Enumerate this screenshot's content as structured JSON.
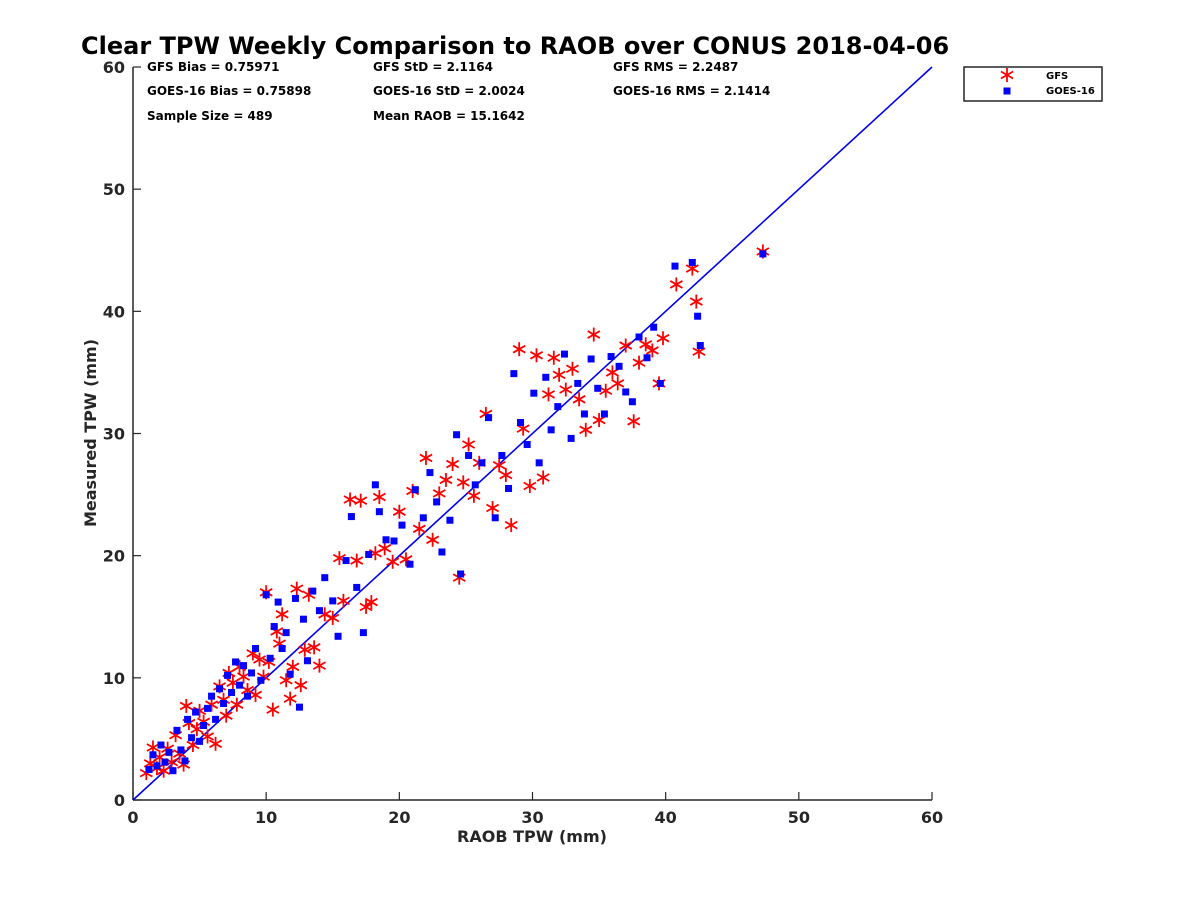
{
  "chart_data": {
    "type": "scatter",
    "title": "Clear TPW Weekly Comparison to RAOB over CONUS 2018-04-06",
    "xlabel": "RAOB TPW (mm)",
    "ylabel": "Measured TPW (mm)",
    "xlim": [
      0,
      60
    ],
    "ylim": [
      0,
      60
    ],
    "xticks": [
      0,
      10,
      20,
      30,
      40,
      50,
      60
    ],
    "yticks": [
      0,
      10,
      20,
      30,
      40,
      50,
      60
    ],
    "grid": false,
    "legend_position": "top-right, outside plot",
    "reference_line": {
      "from": [
        0,
        0
      ],
      "to": [
        60,
        60
      ],
      "color": "#0000ee"
    },
    "stats": {
      "row1": [
        "GFS Bias = 0.75971",
        "GFS StD = 2.1164",
        "GFS RMS = 2.2487"
      ],
      "row2": [
        "GOES-16 Bias = 0.75898",
        "GOES-16 StD = 2.0024",
        "GOES-16 RMS = 2.1414"
      ],
      "row3": [
        "Sample Size = 489",
        "Mean RAOB = 15.1642"
      ]
    },
    "series": [
      {
        "name": "GFS",
        "marker": "asterisk",
        "color": "#ff0000",
        "points": [
          [
            1,
            2.2
          ],
          [
            1.3,
            3
          ],
          [
            1.5,
            4.3
          ],
          [
            1.8,
            2.6
          ],
          [
            2,
            3.5
          ],
          [
            2.3,
            2.4
          ],
          [
            2.6,
            4.2
          ],
          [
            2.9,
            3.1
          ],
          [
            3.2,
            5.3
          ],
          [
            3.5,
            3.8
          ],
          [
            3.8,
            2.9
          ],
          [
            4,
            7.7
          ],
          [
            4.2,
            6.3
          ],
          [
            4.5,
            4.5
          ],
          [
            4.8,
            5.8
          ],
          [
            5,
            7.3
          ],
          [
            5.3,
            6.4
          ],
          [
            5.6,
            5.2
          ],
          [
            5.9,
            7.8
          ],
          [
            6.2,
            4.6
          ],
          [
            6.5,
            9.3
          ],
          [
            6.8,
            8.2
          ],
          [
            7,
            6.9
          ],
          [
            7.2,
            10.4
          ],
          [
            7.5,
            9.6
          ],
          [
            7.8,
            7.8
          ],
          [
            8,
            10.9
          ],
          [
            8.3,
            10.1
          ],
          [
            8.6,
            9
          ],
          [
            9,
            12
          ],
          [
            9.2,
            8.6
          ],
          [
            9.5,
            11.5
          ],
          [
            9.8,
            10.1
          ],
          [
            10,
            17
          ],
          [
            10.2,
            11.3
          ],
          [
            10.5,
            7.4
          ],
          [
            10.8,
            13.8
          ],
          [
            11,
            12.8
          ],
          [
            11.2,
            15.2
          ],
          [
            11.5,
            9.8
          ],
          [
            11.8,
            8.3
          ],
          [
            12,
            10.9
          ],
          [
            12.3,
            17.3
          ],
          [
            12.6,
            9.4
          ],
          [
            12.9,
            12.3
          ],
          [
            13.2,
            16.8
          ],
          [
            13.6,
            12.5
          ],
          [
            14,
            11
          ],
          [
            14.4,
            15.2
          ],
          [
            15,
            14.9
          ],
          [
            15.5,
            19.8
          ],
          [
            15.8,
            16.3
          ],
          [
            16.3,
            24.6
          ],
          [
            16.8,
            19.6
          ],
          [
            17.1,
            24.5
          ],
          [
            17.5,
            15.8
          ],
          [
            17.9,
            16.2
          ],
          [
            18.2,
            20.2
          ],
          [
            18.5,
            24.8
          ],
          [
            18.9,
            20.6
          ],
          [
            19.5,
            19.5
          ],
          [
            20,
            23.6
          ],
          [
            20.5,
            19.7
          ],
          [
            21,
            25.3
          ],
          [
            21.5,
            22.2
          ],
          [
            22,
            28
          ],
          [
            22.5,
            21.3
          ],
          [
            23,
            25.1
          ],
          [
            23.5,
            26.2
          ],
          [
            24,
            27.5
          ],
          [
            24.5,
            18.2
          ],
          [
            24.8,
            26
          ],
          [
            25.2,
            29.1
          ],
          [
            25.6,
            24.9
          ],
          [
            26,
            27.6
          ],
          [
            26.5,
            31.6
          ],
          [
            27,
            23.9
          ],
          [
            27.5,
            27.4
          ],
          [
            28,
            26.6
          ],
          [
            28.4,
            22.5
          ],
          [
            29,
            36.9
          ],
          [
            29.3,
            30.4
          ],
          [
            29.8,
            25.7
          ],
          [
            30.3,
            36.4
          ],
          [
            30.8,
            26.4
          ],
          [
            31.2,
            33.2
          ],
          [
            31.6,
            36.2
          ],
          [
            32,
            34.8
          ],
          [
            32.5,
            33.6
          ],
          [
            33,
            35.3
          ],
          [
            33.5,
            32.8
          ],
          [
            34,
            30.3
          ],
          [
            34.6,
            38.1
          ],
          [
            35,
            31.1
          ],
          [
            35.5,
            33.5
          ],
          [
            36,
            35
          ],
          [
            36.4,
            34.1
          ],
          [
            37,
            37.2
          ],
          [
            37.6,
            31
          ],
          [
            38,
            35.8
          ],
          [
            38.5,
            37.3
          ],
          [
            39,
            36.8
          ],
          [
            39.5,
            34.1
          ],
          [
            39.8,
            37.8
          ],
          [
            40.8,
            42.2
          ],
          [
            42,
            43.5
          ],
          [
            42.3,
            40.8
          ],
          [
            42.5,
            36.7
          ],
          [
            47.3,
            44.9
          ]
        ]
      },
      {
        "name": "GOES-16",
        "marker": "square",
        "color": "#0000ff",
        "points": [
          [
            1.2,
            2.5
          ],
          [
            1.5,
            3.7
          ],
          [
            1.8,
            2.8
          ],
          [
            2.1,
            4.5
          ],
          [
            2.4,
            3.1
          ],
          [
            2.7,
            3.9
          ],
          [
            3,
            2.4
          ],
          [
            3.3,
            5.7
          ],
          [
            3.6,
            4.1
          ],
          [
            3.9,
            3.2
          ],
          [
            4.1,
            6.6
          ],
          [
            4.4,
            5.1
          ],
          [
            4.7,
            7.2
          ],
          [
            5,
            4.8
          ],
          [
            5.3,
            6.1
          ],
          [
            5.6,
            7.5
          ],
          [
            5.9,
            8.5
          ],
          [
            6.2,
            6.6
          ],
          [
            6.5,
            9.1
          ],
          [
            6.8,
            7.9
          ],
          [
            7.1,
            10.2
          ],
          [
            7.4,
            8.8
          ],
          [
            7.7,
            11.3
          ],
          [
            8,
            9.4
          ],
          [
            8.3,
            11
          ],
          [
            8.6,
            8.5
          ],
          [
            8.9,
            10.4
          ],
          [
            9.2,
            12.4
          ],
          [
            9.6,
            9.8
          ],
          [
            10,
            16.8
          ],
          [
            10.3,
            11.6
          ],
          [
            10.6,
            14.2
          ],
          [
            10.9,
            16.2
          ],
          [
            11.2,
            12.4
          ],
          [
            11.5,
            13.7
          ],
          [
            11.8,
            10.3
          ],
          [
            12.2,
            16.5
          ],
          [
            12.5,
            7.6
          ],
          [
            12.8,
            14.8
          ],
          [
            13.1,
            11.4
          ],
          [
            13.5,
            17.1
          ],
          [
            14,
            15.5
          ],
          [
            14.4,
            18.2
          ],
          [
            15,
            16.3
          ],
          [
            15.4,
            13.4
          ],
          [
            16,
            19.6
          ],
          [
            16.4,
            23.2
          ],
          [
            16.8,
            17.4
          ],
          [
            17.3,
            13.7
          ],
          [
            17.7,
            20.1
          ],
          [
            18.2,
            25.8
          ],
          [
            18.5,
            23.6
          ],
          [
            19,
            21.3
          ],
          [
            19.6,
            21.2
          ],
          [
            20.2,
            22.5
          ],
          [
            20.8,
            19.3
          ],
          [
            21.2,
            25.4
          ],
          [
            21.8,
            23.1
          ],
          [
            22.3,
            26.8
          ],
          [
            22.8,
            24.4
          ],
          [
            23.2,
            20.3
          ],
          [
            23.8,
            22.9
          ],
          [
            24.3,
            29.9
          ],
          [
            24.6,
            18.5
          ],
          [
            25.2,
            28.2
          ],
          [
            25.7,
            25.8
          ],
          [
            26.2,
            27.6
          ],
          [
            26.7,
            31.3
          ],
          [
            27.2,
            23.1
          ],
          [
            27.7,
            28.2
          ],
          [
            28.2,
            25.5
          ],
          [
            28.6,
            34.9
          ],
          [
            29.1,
            30.9
          ],
          [
            29.6,
            29.1
          ],
          [
            30.1,
            33.3
          ],
          [
            30.5,
            27.6
          ],
          [
            31,
            34.6
          ],
          [
            31.4,
            30.3
          ],
          [
            31.9,
            32.2
          ],
          [
            32.4,
            36.5
          ],
          [
            32.9,
            29.6
          ],
          [
            33.4,
            34.1
          ],
          [
            33.9,
            31.6
          ],
          [
            34.4,
            36.1
          ],
          [
            34.9,
            33.7
          ],
          [
            35.4,
            31.6
          ],
          [
            35.9,
            36.3
          ],
          [
            36.5,
            35.5
          ],
          [
            37,
            33.4
          ],
          [
            37.5,
            32.6
          ],
          [
            38,
            37.9
          ],
          [
            38.6,
            36.2
          ],
          [
            39.1,
            38.7
          ],
          [
            39.6,
            34.1
          ],
          [
            40.7,
            43.7
          ],
          [
            42,
            44
          ],
          [
            42.4,
            39.6
          ],
          [
            42.6,
            37.2
          ],
          [
            47.3,
            44.7
          ]
        ]
      }
    ]
  }
}
